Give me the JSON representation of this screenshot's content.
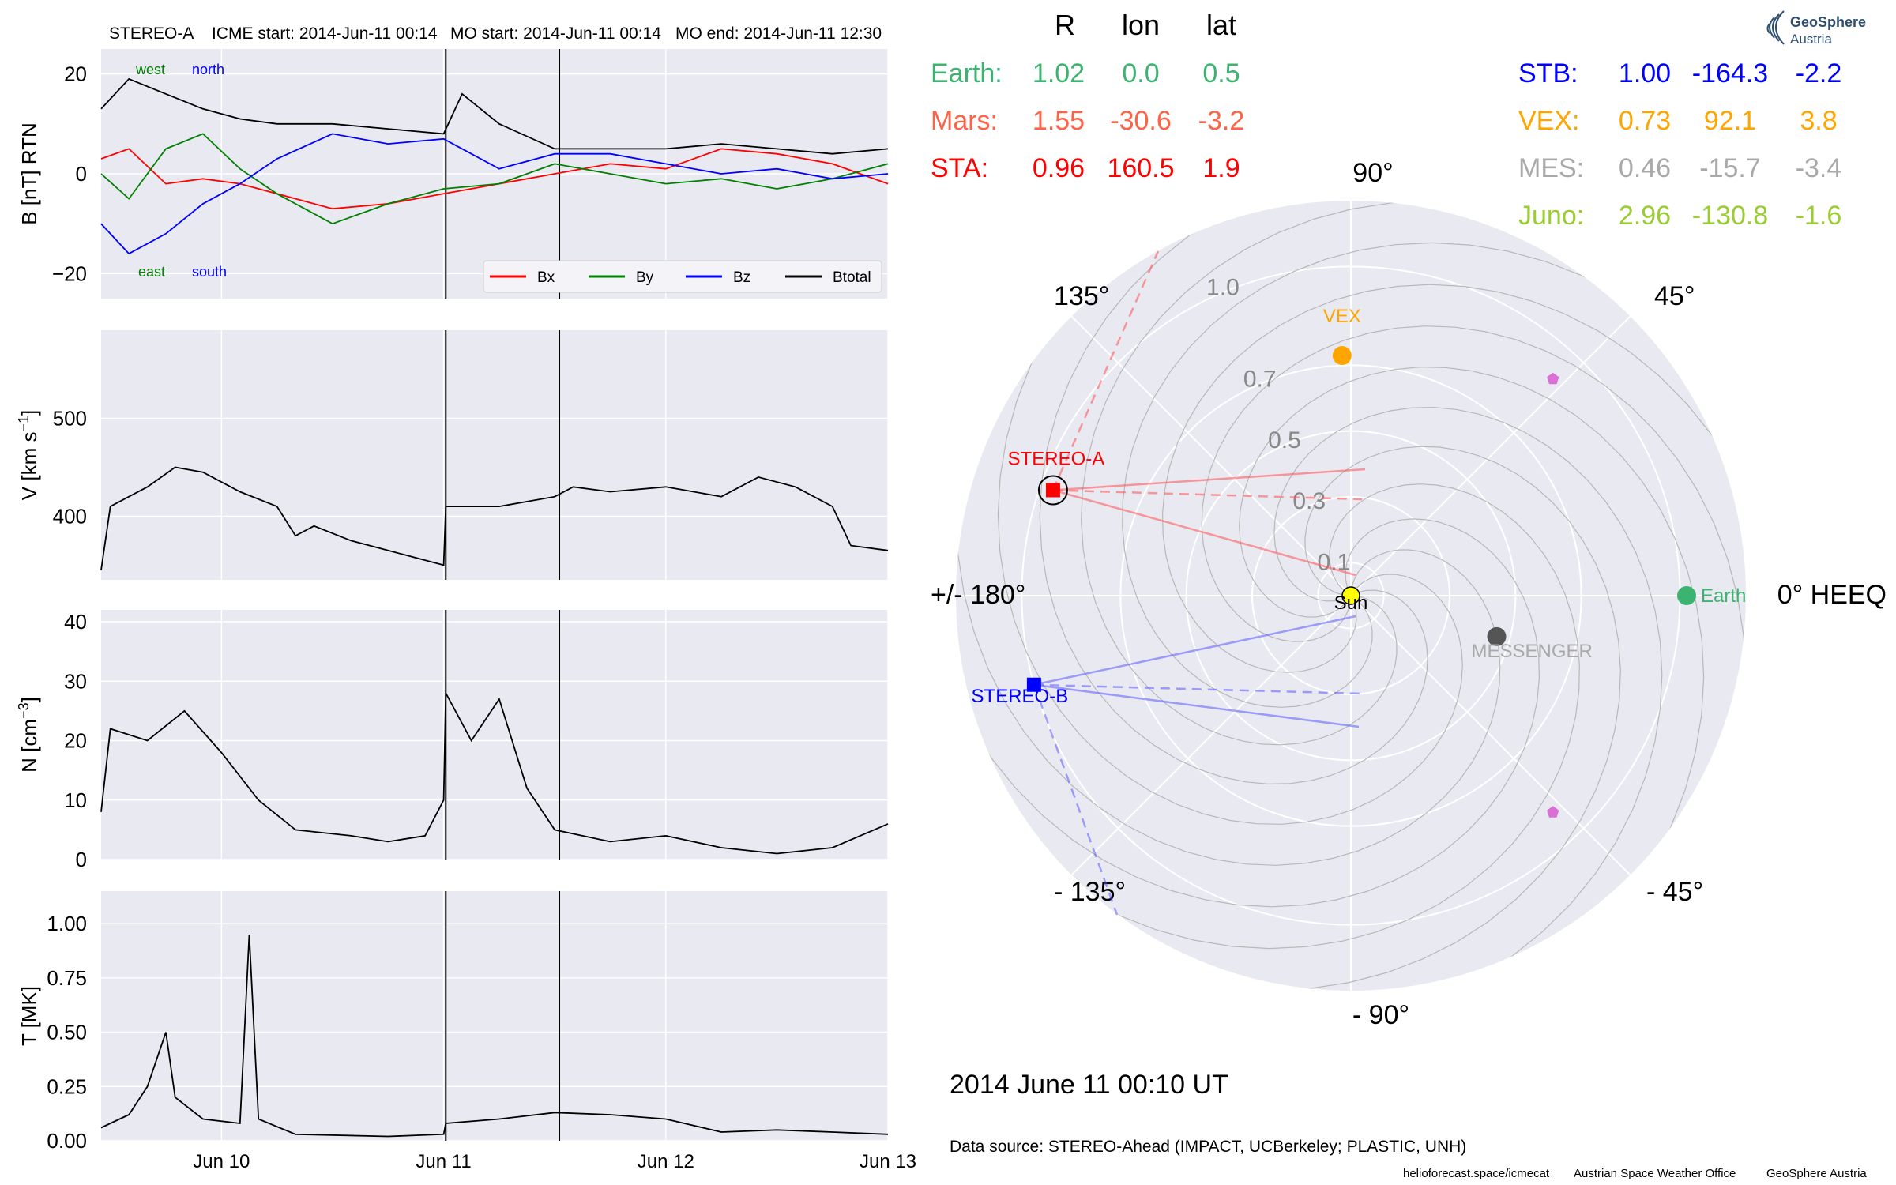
{
  "header": {
    "spacecraft": "STEREO-A",
    "icme_start": "ICME start: 2014-Jun-11 00:14",
    "mo_start": "MO start: 2014-Jun-11 00:14",
    "mo_end": "MO end: 2014-Jun-11 12:30"
  },
  "colors": {
    "panel_bg": "#e9e9f2",
    "bx": "#ff0000",
    "by": "#008000",
    "bz": "#0000ff",
    "btotal": "#000000",
    "earth": "#3cb371",
    "mars": "#ff6347",
    "sta": "#ff0000",
    "stb": "#0000ff",
    "vex": "#ffa500",
    "mes": "#a9a9a9",
    "juno": "#9acd32",
    "messenger_dot": "#555555",
    "sun": "#ffff00",
    "pentagon": "#da70d6"
  },
  "time_axis": {
    "start": "2014-06-09 11:00",
    "end": "2014-06-13 00:00",
    "ticks": [
      {
        "t": "2014-06-10 00:00",
        "label": "Jun 10"
      },
      {
        "t": "2014-06-11 00:00",
        "label": "Jun 11"
      },
      {
        "t": "2014-06-12 00:00",
        "label": "Jun 12"
      },
      {
        "t": "2014-06-13 00:00",
        "label": "Jun 13"
      }
    ],
    "boundaries": [
      "2014-06-11 00:14",
      "2014-06-11 12:30"
    ]
  },
  "chart_data": [
    {
      "type": "line",
      "ylabel": "B [nT] RTN",
      "ylim": [
        -25,
        25
      ],
      "yticks": [
        -20,
        0,
        20
      ],
      "annotations": {
        "west": "west",
        "north": "north",
        "east": "east",
        "south": "south"
      },
      "legend": {
        "placement": "lower-right",
        "entries": [
          "Bx",
          "By",
          "Bz",
          "Btotal"
        ]
      },
      "series": [
        {
          "name": "Bx",
          "points": [
            [
              "2014-06-09 11:00",
              3
            ],
            [
              "2014-06-09 14:00",
              5
            ],
            [
              "2014-06-09 18:00",
              -2
            ],
            [
              "2014-06-09 22:00",
              -1
            ],
            [
              "2014-06-10 02:00",
              -2
            ],
            [
              "2014-06-10 06:00",
              -4
            ],
            [
              "2014-06-10 12:00",
              -7
            ],
            [
              "2014-06-10 18:00",
              -6
            ],
            [
              "2014-06-11 00:00",
              -4
            ],
            [
              "2014-06-11 06:00",
              -2
            ],
            [
              "2014-06-11 12:00",
              0
            ],
            [
              "2014-06-11 18:00",
              2
            ],
            [
              "2014-06-12 00:00",
              1
            ],
            [
              "2014-06-12 06:00",
              5
            ],
            [
              "2014-06-12 12:00",
              4
            ],
            [
              "2014-06-12 18:00",
              2
            ],
            [
              "2014-06-13 00:00",
              -2
            ]
          ]
        },
        {
          "name": "By",
          "points": [
            [
              "2014-06-09 11:00",
              0
            ],
            [
              "2014-06-09 14:00",
              -5
            ],
            [
              "2014-06-09 18:00",
              5
            ],
            [
              "2014-06-09 22:00",
              8
            ],
            [
              "2014-06-10 02:00",
              1
            ],
            [
              "2014-06-10 06:00",
              -4
            ],
            [
              "2014-06-10 12:00",
              -10
            ],
            [
              "2014-06-10 18:00",
              -6
            ],
            [
              "2014-06-11 00:00",
              -3
            ],
            [
              "2014-06-11 06:00",
              -2
            ],
            [
              "2014-06-11 12:00",
              2
            ],
            [
              "2014-06-11 18:00",
              0
            ],
            [
              "2014-06-12 00:00",
              -2
            ],
            [
              "2014-06-12 06:00",
              -1
            ],
            [
              "2014-06-12 12:00",
              -3
            ],
            [
              "2014-06-12 18:00",
              -1
            ],
            [
              "2014-06-13 00:00",
              2
            ]
          ]
        },
        {
          "name": "Bz",
          "points": [
            [
              "2014-06-09 11:00",
              -10
            ],
            [
              "2014-06-09 14:00",
              -16
            ],
            [
              "2014-06-09 18:00",
              -12
            ],
            [
              "2014-06-09 22:00",
              -6
            ],
            [
              "2014-06-10 02:00",
              -2
            ],
            [
              "2014-06-10 06:00",
              3
            ],
            [
              "2014-06-10 12:00",
              8
            ],
            [
              "2014-06-10 18:00",
              6
            ],
            [
              "2014-06-11 00:00",
              7
            ],
            [
              "2014-06-11 06:00",
              1
            ],
            [
              "2014-06-11 12:00",
              4
            ],
            [
              "2014-06-11 18:00",
              4
            ],
            [
              "2014-06-12 00:00",
              2
            ],
            [
              "2014-06-12 06:00",
              0
            ],
            [
              "2014-06-12 12:00",
              1
            ],
            [
              "2014-06-12 18:00",
              -1
            ],
            [
              "2014-06-13 00:00",
              0
            ]
          ]
        },
        {
          "name": "Btotal",
          "points": [
            [
              "2014-06-09 11:00",
              13
            ],
            [
              "2014-06-09 14:00",
              19
            ],
            [
              "2014-06-09 18:00",
              16
            ],
            [
              "2014-06-09 22:00",
              13
            ],
            [
              "2014-06-10 02:00",
              11
            ],
            [
              "2014-06-10 06:00",
              10
            ],
            [
              "2014-06-10 12:00",
              10
            ],
            [
              "2014-06-10 18:00",
              9
            ],
            [
              "2014-06-11 00:00",
              8
            ],
            [
              "2014-06-11 02:00",
              16
            ],
            [
              "2014-06-11 06:00",
              10
            ],
            [
              "2014-06-11 12:00",
              5
            ],
            [
              "2014-06-11 18:00",
              5
            ],
            [
              "2014-06-12 00:00",
              5
            ],
            [
              "2014-06-12 06:00",
              6
            ],
            [
              "2014-06-12 12:00",
              5
            ],
            [
              "2014-06-12 18:00",
              4
            ],
            [
              "2014-06-13 00:00",
              5
            ]
          ]
        }
      ]
    },
    {
      "type": "line",
      "ylabel": "V [km s$^{-1}$]",
      "ylabel_main": "V [km s",
      "ylabel_sup": "−1",
      "ylabel_end": "]",
      "ylim": [
        335,
        590
      ],
      "yticks": [
        400,
        500
      ],
      "series": [
        {
          "points": [
            [
              "2014-06-09 11:00",
              345
            ],
            [
              "2014-06-09 12:00",
              410
            ],
            [
              "2014-06-09 16:00",
              430
            ],
            [
              "2014-06-09 19:00",
              450
            ],
            [
              "2014-06-09 22:00",
              445
            ],
            [
              "2014-06-10 02:00",
              425
            ],
            [
              "2014-06-10 06:00",
              410
            ],
            [
              "2014-06-10 08:00",
              380
            ],
            [
              "2014-06-10 10:00",
              390
            ],
            [
              "2014-06-10 14:00",
              375
            ],
            [
              "2014-06-10 18:00",
              365
            ],
            [
              "2014-06-11 00:00",
              350
            ],
            [
              "2014-06-11 00:14",
              410
            ],
            [
              "2014-06-11 06:00",
              410
            ],
            [
              "2014-06-11 12:00",
              420
            ],
            [
              "2014-06-11 14:00",
              430
            ],
            [
              "2014-06-11 18:00",
              425
            ],
            [
              "2014-06-12 00:00",
              430
            ],
            [
              "2014-06-12 06:00",
              420
            ],
            [
              "2014-06-12 10:00",
              440
            ],
            [
              "2014-06-12 14:00",
              430
            ],
            [
              "2014-06-12 18:00",
              410
            ],
            [
              "2014-06-12 20:00",
              370
            ],
            [
              "2014-06-13 00:00",
              365
            ]
          ]
        }
      ]
    },
    {
      "type": "line",
      "ylabel": "N [cm$^{-3}$]",
      "ylabel_main": "N [cm",
      "ylabel_sup": "−3",
      "ylabel_end": "]",
      "ylim": [
        0,
        42
      ],
      "yticks": [
        0,
        10,
        20,
        30,
        40
      ],
      "series": [
        {
          "points": [
            [
              "2014-06-09 11:00",
              8
            ],
            [
              "2014-06-09 12:00",
              22
            ],
            [
              "2014-06-09 16:00",
              20
            ],
            [
              "2014-06-09 20:00",
              25
            ],
            [
              "2014-06-10 00:00",
              18
            ],
            [
              "2014-06-10 04:00",
              10
            ],
            [
              "2014-06-10 08:00",
              5
            ],
            [
              "2014-06-10 14:00",
              4
            ],
            [
              "2014-06-10 18:00",
              3
            ],
            [
              "2014-06-10 22:00",
              4
            ],
            [
              "2014-06-11 00:00",
              10
            ],
            [
              "2014-06-11 00:14",
              28
            ],
            [
              "2014-06-11 03:00",
              20
            ],
            [
              "2014-06-11 06:00",
              27
            ],
            [
              "2014-06-11 09:00",
              12
            ],
            [
              "2014-06-11 12:00",
              5
            ],
            [
              "2014-06-11 18:00",
              3
            ],
            [
              "2014-06-12 00:00",
              4
            ],
            [
              "2014-06-12 06:00",
              2
            ],
            [
              "2014-06-12 12:00",
              1
            ],
            [
              "2014-06-12 18:00",
              2
            ],
            [
              "2014-06-13 00:00",
              6
            ]
          ]
        }
      ]
    },
    {
      "type": "line",
      "ylabel": "T [MK]",
      "ylim": [
        0,
        1.15
      ],
      "yticks": [
        0.0,
        0.25,
        0.5,
        0.75,
        1.0
      ],
      "ytick_labels": [
        "0.00",
        "0.25",
        "0.50",
        "0.75",
        "1.00"
      ],
      "series": [
        {
          "points": [
            [
              "2014-06-09 11:00",
              0.06
            ],
            [
              "2014-06-09 14:00",
              0.12
            ],
            [
              "2014-06-09 16:00",
              0.25
            ],
            [
              "2014-06-09 18:00",
              0.5
            ],
            [
              "2014-06-09 19:00",
              0.2
            ],
            [
              "2014-06-09 22:00",
              0.1
            ],
            [
              "2014-06-10 02:00",
              0.08
            ],
            [
              "2014-06-10 03:00",
              0.95
            ],
            [
              "2014-06-10 04:00",
              0.1
            ],
            [
              "2014-06-10 08:00",
              0.03
            ],
            [
              "2014-06-10 18:00",
              0.02
            ],
            [
              "2014-06-11 00:00",
              0.03
            ],
            [
              "2014-06-11 00:14",
              0.08
            ],
            [
              "2014-06-11 06:00",
              0.1
            ],
            [
              "2014-06-11 12:00",
              0.13
            ],
            [
              "2014-06-11 18:00",
              0.12
            ],
            [
              "2014-06-12 00:00",
              0.1
            ],
            [
              "2014-06-12 06:00",
              0.04
            ],
            [
              "2014-06-12 12:00",
              0.05
            ],
            [
              "2014-06-12 18:00",
              0.04
            ],
            [
              "2014-06-13 00:00",
              0.03
            ]
          ]
        }
      ]
    },
    {
      "type": "scatter",
      "projection": "polar",
      "rmax": 1.2,
      "r_ticks": [
        0.1,
        0.3,
        0.5,
        0.7,
        1.0
      ],
      "r_tick_labels": [
        "0.1",
        "0.3",
        "0.5",
        "0.7",
        "1.0"
      ],
      "angle_labels": [
        {
          "angle": 0,
          "label": "0° HEEQ"
        },
        {
          "angle": 45,
          "label": "45°"
        },
        {
          "angle": 90,
          "label": "90°"
        },
        {
          "angle": 135,
          "label": "135°"
        },
        {
          "angle": 180,
          "label": "+/- 180°"
        },
        {
          "angle": -135,
          "label": "- 135°"
        },
        {
          "angle": -90,
          "label": "- 90°"
        },
        {
          "angle": -45,
          "label": "- 45°"
        }
      ],
      "bodies": [
        {
          "name": "Sun",
          "label": "Sun",
          "r": 0.0,
          "lon": 0.0,
          "color": "#ffff00"
        },
        {
          "name": "Earth",
          "label": "Earth",
          "r": 1.02,
          "lon": 0.0,
          "color": "#3cb371"
        },
        {
          "name": "VEX",
          "label": "VEX",
          "r": 0.73,
          "lon": 92.1,
          "color": "#ffa500"
        },
        {
          "name": "MESSENGER",
          "label": "MESSENGER",
          "r": 0.46,
          "lon": -15.7,
          "color": "#555555"
        },
        {
          "name": "STEREO-A",
          "label": "STEREO-A",
          "r": 0.96,
          "lon": 160.5,
          "color": "#ff0000"
        },
        {
          "name": "STEREO-B",
          "label": "STEREO-B",
          "r": 1.0,
          "lon": -164.3,
          "color": "#0000ff"
        }
      ],
      "pentagons": [
        {
          "r": 0.9,
          "lon": 47
        },
        {
          "r": 0.9,
          "lon": -47
        }
      ],
      "time_label": "2014 June 11  00:10 UT",
      "source": "Data source: STEREO-Ahead (IMPACT, UCBerkeley; PLASTIC, UNH)"
    }
  ],
  "table": {
    "headers": [
      "R",
      "lon",
      "lat"
    ],
    "rows_left": [
      {
        "name": "Earth:",
        "r": "1.02",
        "lon": "0.0",
        "lat": "0.5",
        "color": "#3cb371"
      },
      {
        "name": "Mars:",
        "r": "1.55",
        "lon": "-30.6",
        "lat": "-3.2",
        "color": "#ff6347"
      },
      {
        "name": "STA:",
        "r": "0.96",
        "lon": "160.5",
        "lat": "1.9",
        "color": "#ff0000"
      }
    ],
    "rows_right": [
      {
        "name": "STB:",
        "r": "1.00",
        "lon": "-164.3",
        "lat": "-2.2",
        "color": "#0000ff"
      },
      {
        "name": "VEX:",
        "r": "0.73",
        "lon": "92.1",
        "lat": "3.8",
        "color": "#ffa500"
      },
      {
        "name": "MES:",
        "r": "0.46",
        "lon": "-15.7",
        "lat": "-3.4",
        "color": "#a9a9a9"
      },
      {
        "name": "Juno:",
        "r": "2.96",
        "lon": "-130.8",
        "lat": "-1.6",
        "color": "#9acd32"
      }
    ]
  },
  "logo": {
    "line1": "GeoSphere",
    "line2": "Austria"
  },
  "footer": {
    "url": "helioforecast.space/icmecat",
    "office": "Austrian Space Weather Office",
    "org": "GeoSphere Austria"
  }
}
